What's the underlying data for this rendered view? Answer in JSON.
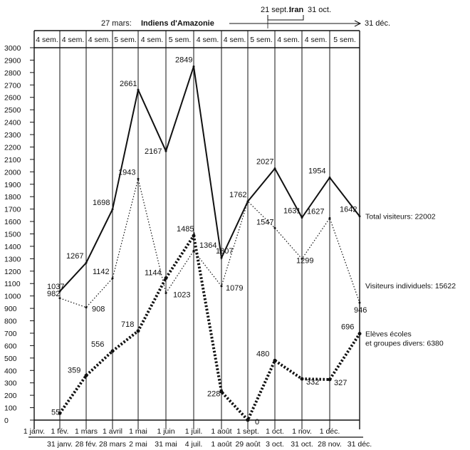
{
  "header": {
    "event1_date": "27 mars:",
    "event1_name": "Indiens d'Amazonie",
    "event2_date": "21 sept.:",
    "event2_name": "Iran",
    "event2_end": "31 oct.",
    "end_date": "31 déc."
  },
  "colors": {
    "ink": "#111111",
    "background": "#ffffff"
  },
  "chart_data": {
    "type": "line",
    "ylim": [
      0,
      3000
    ],
    "yticks": [
      0,
      100,
      200,
      300,
      400,
      500,
      600,
      700,
      800,
      900,
      1000,
      1100,
      1200,
      1300,
      1400,
      1500,
      1600,
      1700,
      1800,
      1900,
      2000,
      2100,
      2200,
      2300,
      2400,
      2500,
      2600,
      2700,
      2800,
      2900,
      3000
    ],
    "week_counts": [
      "4 sem.",
      "4 sem.",
      "4 sem.",
      "5 sem.",
      "4 sem.",
      "5 sem.",
      "4 sem.",
      "4 sem.",
      "5 sem.",
      "4 sem.",
      "4 sem.",
      "5 sem."
    ],
    "period_start_labels": [
      "1 janv.",
      "1 fév.",
      "1 mars",
      "1 avril",
      "1 mai",
      "1 juin",
      "1 juil.",
      "1 août",
      "1 sept.",
      "1 oct.",
      "1 nov.",
      "1 déc."
    ],
    "period_end_labels": [
      "31 janv.",
      "28 fév.",
      "28 mars",
      "2 mai",
      "31 mai",
      "4 juil.",
      "1 août",
      "29 août",
      "3 oct.",
      "31 oct.",
      "28 nov.",
      "31 déc."
    ],
    "series": [
      {
        "name": "Total visiteurs: 22002",
        "style": "solid",
        "values": [
          1037,
          1267,
          1698,
          2661,
          2167,
          2849,
          1307,
          1762,
          2027,
          1631,
          1954,
          1642
        ],
        "labels": [
          "1037",
          "1267",
          "1698",
          "2661",
          "2167",
          "2849",
          "1307",
          "1762",
          "2027",
          "1631",
          "1954",
          "1642"
        ]
      },
      {
        "name": "Visiteurs individuels: 15622",
        "style": "dotted",
        "values": [
          982,
          908,
          1142,
          1943,
          1023,
          1364,
          1079,
          1762,
          1547,
          1299,
          1627,
          946
        ],
        "labels": [
          "982",
          "908",
          "1142",
          "1943",
          "1023",
          "1364",
          "1079",
          "",
          "1547",
          "1299",
          "1627",
          "946"
        ]
      },
      {
        "name": "Elèves écoles\net groupes divers: 6380",
        "style": "heavy-dotted",
        "values": [
          55,
          359,
          556,
          718,
          1144,
          1485,
          228,
          0,
          480,
          332,
          327,
          696
        ],
        "labels": [
          "55",
          "359",
          "556",
          "718",
          "1144",
          "1485",
          "228",
          "0",
          "480",
          "332",
          "327",
          "696"
        ]
      }
    ]
  }
}
